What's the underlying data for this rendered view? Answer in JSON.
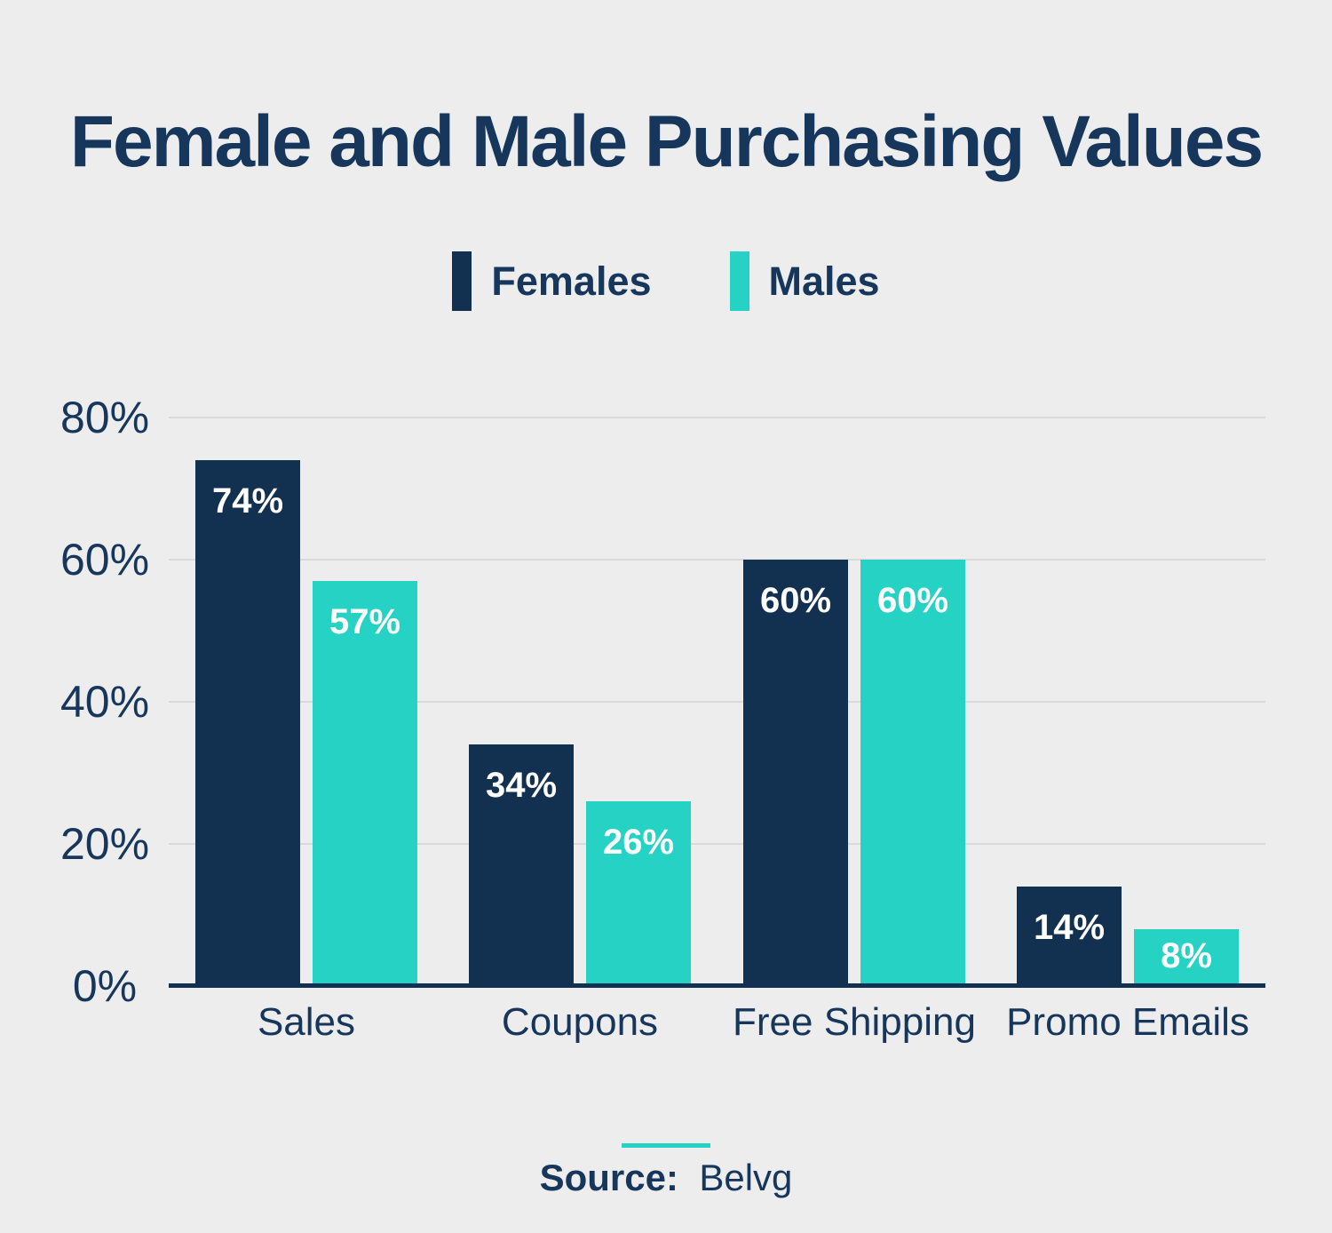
{
  "title": "Female and Male Purchasing Values",
  "legend": {
    "items": [
      {
        "label": "Females",
        "color": "#12304f"
      },
      {
        "label": "Males",
        "color": "#26d2c4"
      }
    ]
  },
  "source": {
    "label": "Source:",
    "value": "Belvg"
  },
  "colors": {
    "background": "#ededee",
    "text_navy": "#16365c",
    "bar_navy": "#12304f",
    "bar_teal": "#26d2c4",
    "gridline": "#d9dadb",
    "value_label_white": "#ffffff"
  },
  "chart_data": {
    "type": "bar",
    "title": "Female and Male Purchasing Values",
    "categories": [
      "Sales",
      "Coupons",
      "Free Shipping",
      "Promo Emails"
    ],
    "series": [
      {
        "name": "Females",
        "color": "#12304f",
        "values": [
          74,
          34,
          60,
          14
        ]
      },
      {
        "name": "Males",
        "color": "#26d2c4",
        "values": [
          57,
          26,
          60,
          8
        ]
      }
    ],
    "value_suffix": "%",
    "xlabel": "",
    "ylabel": "",
    "ylim": [
      0,
      80
    ],
    "yticks": [
      {
        "label": "80%",
        "value": 80
      },
      {
        "label": "60%",
        "value": 60
      },
      {
        "label": "40%",
        "value": 40
      },
      {
        "label": "20%",
        "value": 20
      },
      {
        "label": "0%",
        "value": 0
      }
    ],
    "grid": true,
    "legend_position": "top-center"
  }
}
